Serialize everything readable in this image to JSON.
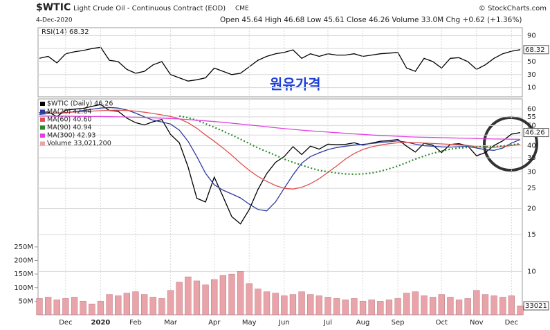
{
  "header": {
    "symbol": "$WTIC",
    "name": "Light Crude Oil - Continuous Contract (EOD)",
    "exchange": "CME",
    "source": "© StockCharts.com",
    "date": "4-Dec-2020",
    "quote": "Open 45.64 High 46.68 Low 45.61 Close 46.26 Volume 33.0M Chg +0.62 (+1.36%)"
  },
  "chart_data": [
    {
      "type": "line",
      "name": "RSI(14) 68.32",
      "color": "#000000",
      "values": [
        55,
        58,
        48,
        62,
        65,
        67,
        70,
        72,
        52,
        50,
        38,
        32,
        35,
        45,
        50,
        30,
        25,
        20,
        22,
        25,
        40,
        35,
        30,
        32,
        42,
        52,
        58,
        62,
        64,
        68,
        55,
        62,
        58,
        62,
        60,
        60,
        62,
        58,
        60,
        62,
        63,
        64,
        40,
        35,
        55,
        50,
        40,
        55,
        56,
        50,
        38,
        45,
        55,
        62,
        66,
        68.32
      ],
      "ylim": [
        0,
        100
      ],
      "yticks": [
        10,
        30,
        50,
        70,
        90
      ],
      "grid": true
    },
    {
      "type": "line",
      "annotation": "원유가격",
      "log": true,
      "grid": true,
      "categories": [
        null,
        null,
        null,
        "Dec",
        null,
        null,
        null,
        "2020",
        null,
        null,
        null,
        "Feb",
        null,
        null,
        null,
        "Mar",
        null,
        null,
        null,
        null,
        "Apr",
        null,
        null,
        null,
        "May",
        null,
        null,
        null,
        "Jun",
        null,
        null,
        null,
        null,
        "Jul",
        null,
        null,
        null,
        "Aug",
        null,
        null,
        null,
        "Sep",
        null,
        null,
        null,
        null,
        "Oct",
        null,
        null,
        null,
        "Nov",
        null,
        null,
        null,
        "Dec",
        null
      ],
      "ylim": [
        6.2,
        66
      ],
      "yticks": [
        10,
        15,
        20,
        25,
        30,
        35,
        40,
        45,
        50,
        55,
        60
      ],
      "y2lim": [
        0,
        790
      ],
      "y2ticks": [
        {
          "value": 50,
          "label": "50M"
        },
        {
          "value": 100,
          "label": "100M"
        },
        {
          "value": 150,
          "label": "150M"
        },
        {
          "value": 200,
          "label": "200M"
        },
        {
          "value": 250,
          "label": "250M"
        }
      ],
      "series": [
        {
          "name": "$WTIC (Daily) 46.26",
          "color": "#000000",
          "values": [
            57.7,
            58.0,
            55.2,
            59.2,
            59.9,
            60.4,
            61.7,
            63.0,
            59.0,
            58.5,
            54.2,
            51.6,
            50.3,
            52.1,
            53.4,
            45.3,
            41.3,
            31.7,
            22.4,
            21.5,
            28.3,
            22.8,
            18.3,
            16.9,
            19.8,
            24.7,
            29.4,
            33.3,
            35.5,
            39.6,
            36.3,
            39.8,
            38.5,
            40.7,
            40.5,
            40.6,
            41.3,
            40.3,
            41.2,
            42.0,
            42.3,
            42.9,
            39.8,
            37.3,
            41.1,
            40.3,
            37.1,
            40.6,
            40.9,
            39.9,
            35.8,
            37.1,
            40.1,
            42.2,
            45.5,
            46.26
          ]
        },
        {
          "name": "MA(20) 42.84",
          "color": "#2b3a9e",
          "values": [
            56.5,
            57.0,
            57.3,
            57.6,
            58.2,
            59.0,
            59.8,
            60.6,
            61.0,
            60.6,
            59.3,
            57.3,
            55.0,
            53.0,
            52.0,
            50.8,
            47.5,
            42.0,
            35.5,
            29.5,
            26.0,
            24.5,
            23.5,
            22.5,
            21.0,
            19.8,
            19.5,
            21.5,
            25.0,
            29.0,
            33.0,
            35.5,
            37.0,
            38.3,
            39.2,
            39.8,
            40.3,
            40.6,
            41.0,
            41.4,
            41.8,
            42.2,
            41.6,
            40.7,
            40.0,
            39.8,
            39.5,
            39.4,
            39.6,
            39.7,
            39.0,
            38.3,
            38.0,
            39.0,
            41.2,
            42.84
          ]
        },
        {
          "name": "MA(60) 40.60",
          "color": "#e05050",
          "values": [
            57.0,
            57.2,
            57.4,
            57.6,
            58.0,
            58.3,
            58.6,
            58.9,
            59.1,
            59.2,
            59.0,
            58.6,
            57.9,
            57.1,
            56.2,
            55.3,
            53.8,
            51.5,
            48.5,
            45.0,
            42.0,
            39.0,
            36.0,
            33.0,
            30.5,
            28.5,
            27.0,
            25.8,
            25.0,
            24.8,
            25.3,
            26.3,
            27.8,
            29.8,
            32.0,
            34.5,
            36.7,
            38.4,
            39.5,
            40.3,
            40.9,
            41.3,
            41.5,
            41.4,
            41.2,
            41.0,
            40.8,
            40.6,
            40.4,
            40.1,
            39.6,
            39.3,
            39.3,
            39.6,
            40.1,
            40.6
          ]
        },
        {
          "name": "MA(90) 40.94",
          "color": "#2a8a2a",
          "dash": true,
          "values": [
            null,
            null,
            null,
            null,
            null,
            null,
            null,
            null,
            null,
            null,
            null,
            null,
            null,
            null,
            null,
            null,
            55.5,
            54.5,
            53,
            51,
            49,
            47,
            45,
            43,
            41,
            39,
            37.5,
            36,
            34.5,
            33.3,
            32.3,
            31.3,
            30.5,
            30.0,
            29.6,
            29.3,
            29.2,
            29.3,
            29.6,
            30.2,
            31.0,
            32.0,
            33.2,
            34.5,
            35.7,
            36.8,
            37.7,
            38.5,
            39.0,
            39.3,
            39.5,
            39.6,
            39.6,
            39.9,
            40.4,
            40.94
          ]
        },
        {
          "name": "MA(300) 42.93",
          "color": "#e040e0",
          "values": [
            55.5,
            55.5,
            55.4,
            55.4,
            55.3,
            55.3,
            55.2,
            55.2,
            55.1,
            55.0,
            54.9,
            54.8,
            54.6,
            54.4,
            54.2,
            54.0,
            53.7,
            53.4,
            53.0,
            52.6,
            52.2,
            51.8,
            51.3,
            50.8,
            50.3,
            49.8,
            49.3,
            48.8,
            48.3,
            47.9,
            47.5,
            47.1,
            46.8,
            46.5,
            46.2,
            45.9,
            45.6,
            45.3,
            45.0,
            44.8,
            44.6,
            44.4,
            44.2,
            44.0,
            43.9,
            43.8,
            43.7,
            43.6,
            43.5,
            43.4,
            43.3,
            43.2,
            43.1,
            43.05,
            43.0,
            42.93
          ]
        },
        {
          "name": "Volume 33,021,200",
          "color": "#e8a4a8",
          "axis": "y2",
          "style": "bar",
          "last_label": "33021",
          "values": [
            60,
            65,
            55,
            60,
            65,
            50,
            40,
            50,
            75,
            70,
            80,
            85,
            75,
            65,
            60,
            90,
            120,
            140,
            125,
            110,
            130,
            145,
            150,
            160,
            115,
            95,
            85,
            80,
            70,
            75,
            85,
            75,
            70,
            65,
            60,
            55,
            60,
            50,
            55,
            50,
            55,
            60,
            80,
            85,
            70,
            65,
            75,
            65,
            55,
            60,
            90,
            75,
            70,
            65,
            70,
            33.0212
          ]
        }
      ]
    }
  ]
}
